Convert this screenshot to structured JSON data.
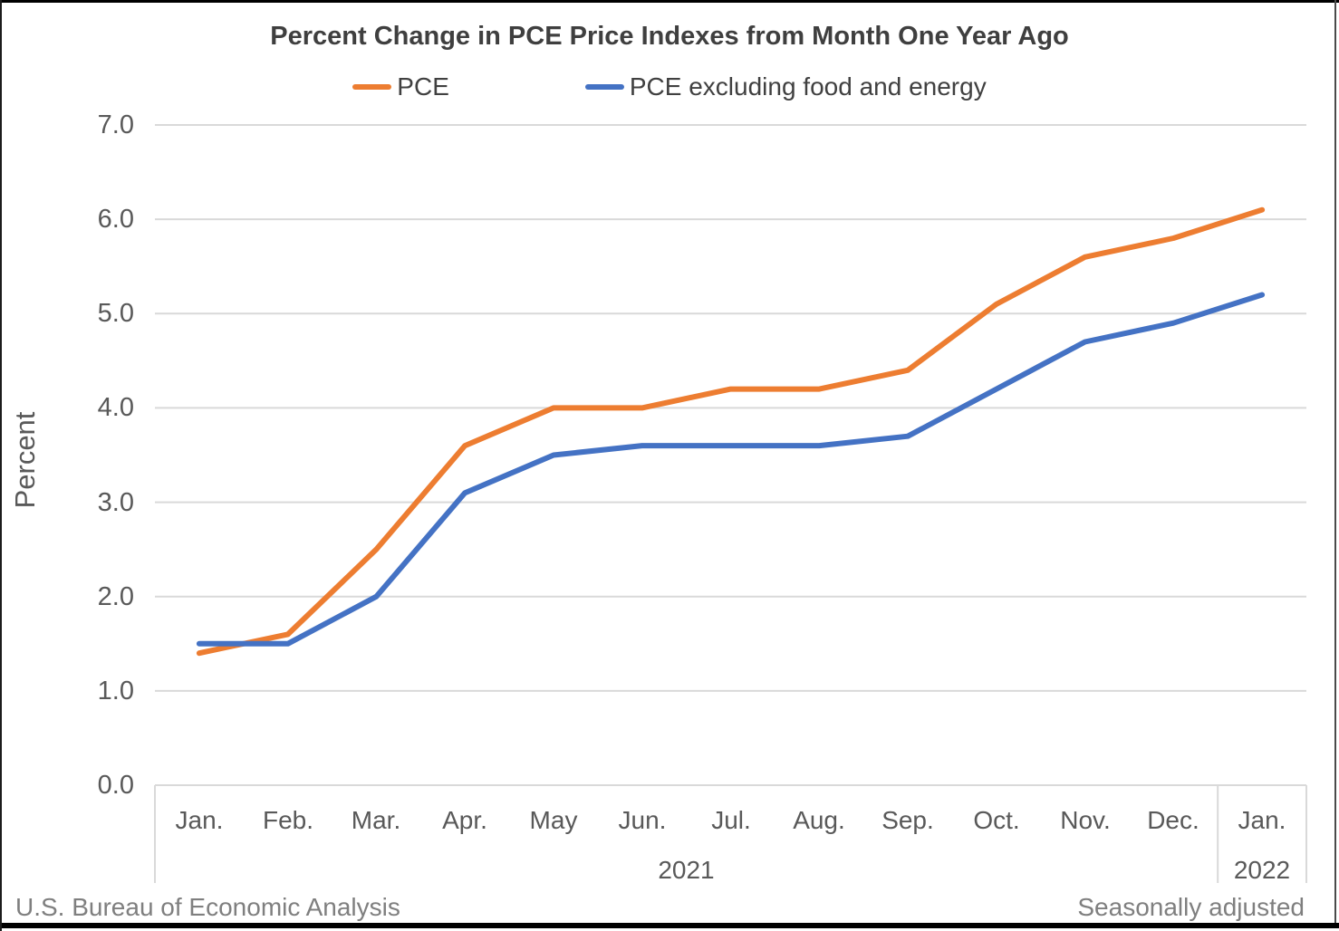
{
  "title": "Percent Change in PCE Price Indexes from Month One Year Ago",
  "footer": {
    "left": "U.S. Bureau of Economic Analysis",
    "right": "Seasonally adjusted"
  },
  "colors": {
    "pce_line": "#ED7D31",
    "core_line": "#4472C4",
    "gridline": "#D9D9D9",
    "axis_text": "#595959",
    "title_text": "#3F3F3F",
    "footer_text": "#7F7F7F"
  },
  "chart_data": {
    "type": "line",
    "title": "Percent Change in PCE Price Indexes from Month One Year Ago",
    "categories": [
      "Jan.",
      "Feb.",
      "Mar.",
      "Apr.",
      "May",
      "Jun.",
      "Jul.",
      "Aug.",
      "Sep.",
      "Oct.",
      "Nov.",
      "Dec.",
      "Jan."
    ],
    "year_groups": [
      {
        "label": "2021",
        "start": 0,
        "end": 11
      },
      {
        "label": "2022",
        "start": 12,
        "end": 12
      }
    ],
    "series": [
      {
        "name": "PCE",
        "color": "#ED7D31",
        "values": [
          1.4,
          1.6,
          2.5,
          3.6,
          4.0,
          4.0,
          4.2,
          4.2,
          4.4,
          5.1,
          5.6,
          5.8,
          6.1
        ]
      },
      {
        "name": "PCE excluding food and energy",
        "color": "#4472C4",
        "values": [
          1.5,
          1.5,
          2.0,
          3.1,
          3.5,
          3.6,
          3.6,
          3.6,
          3.7,
          4.2,
          4.7,
          4.9,
          5.2
        ]
      }
    ],
    "xlabel": "",
    "ylabel": "Percent",
    "ylim": [
      0.0,
      7.0
    ],
    "ytick_step": 1.0,
    "yticks": [
      "0.0",
      "1.0",
      "2.0",
      "3.0",
      "4.0",
      "5.0",
      "6.0",
      "7.0"
    ],
    "grid": "horizontal",
    "legend_position": "top",
    "last_point_separated": true
  }
}
